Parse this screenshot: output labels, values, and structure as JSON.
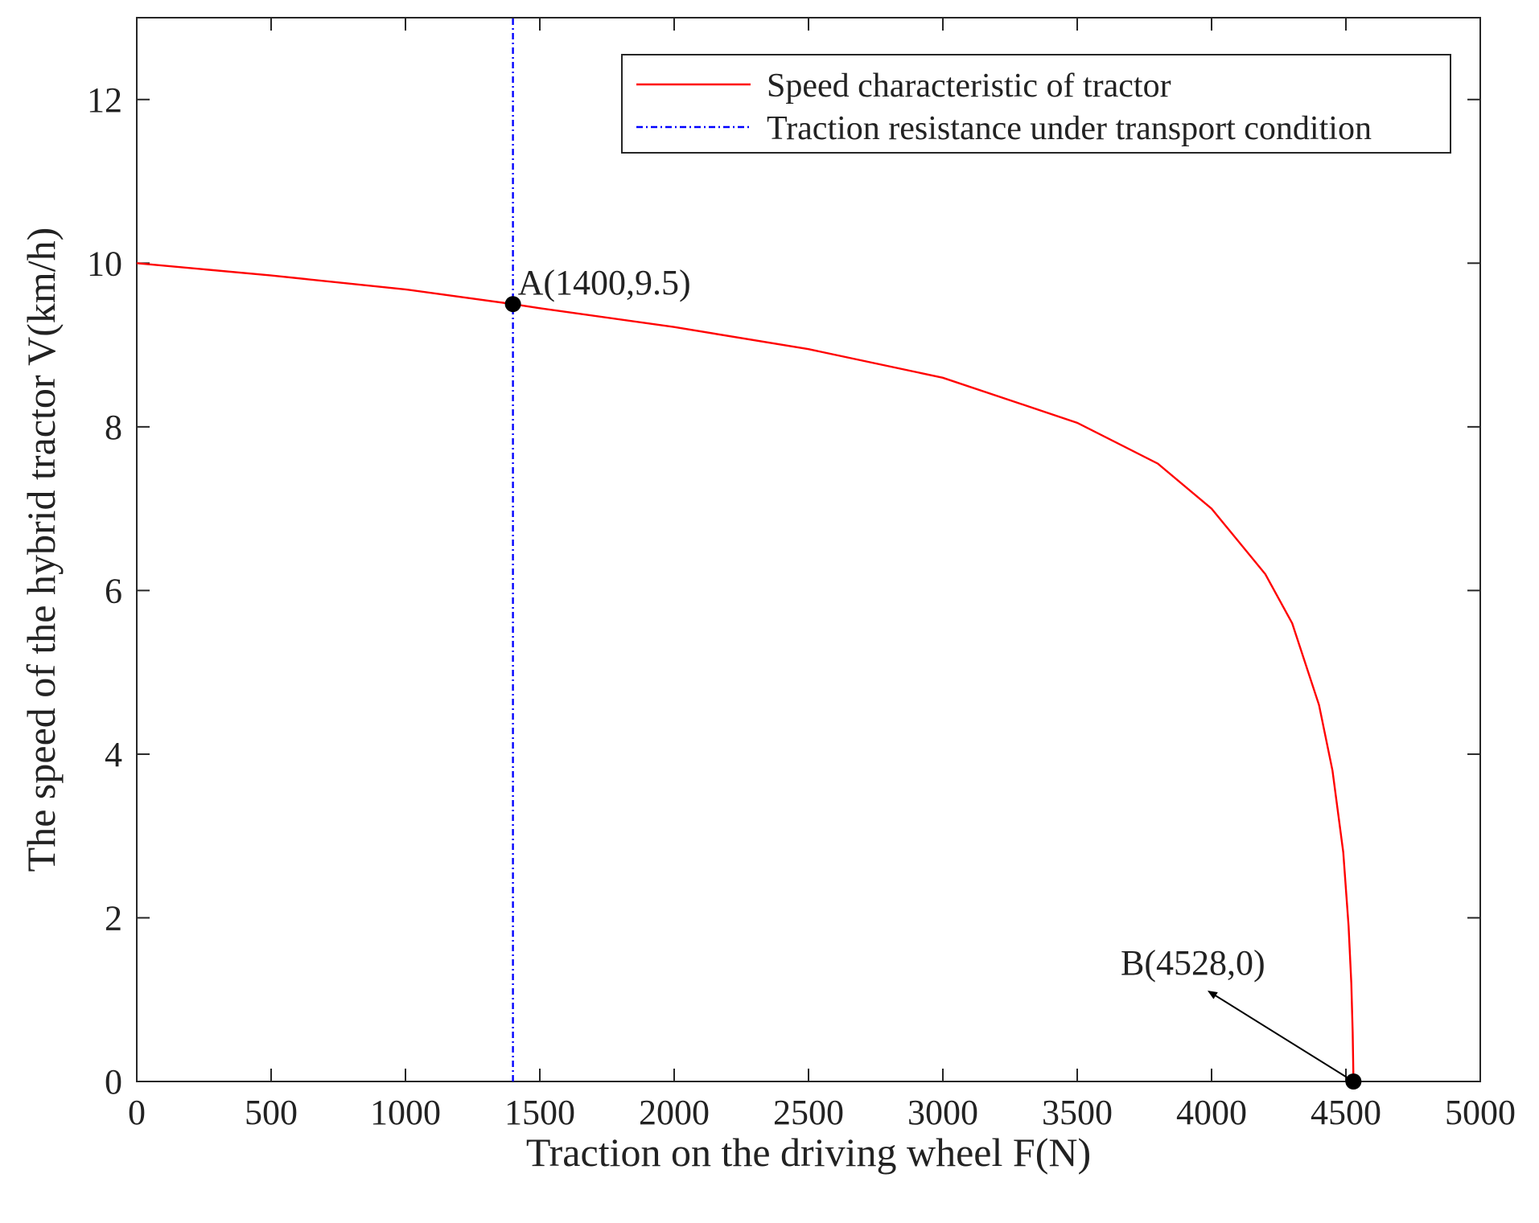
{
  "chart_data": {
    "type": "line",
    "xlabel": "Traction on the driving wheel F(N)",
    "ylabel": "The speed of the hybrid tractor V(km/h)",
    "xlim": [
      0,
      5000
    ],
    "ylim": [
      0,
      13
    ],
    "x_ticks": [
      0,
      500,
      1000,
      1500,
      2000,
      2500,
      3000,
      3500,
      4000,
      4500,
      5000
    ],
    "y_ticks": [
      0,
      2,
      4,
      6,
      8,
      10,
      12
    ],
    "grid": false,
    "legend_position": "top-right",
    "series": [
      {
        "name": "Speed characteristic of tractor",
        "color": "#ff0000",
        "style": "solid",
        "x": [
          0,
          500,
          1000,
          1400,
          1500,
          2000,
          2500,
          3000,
          3500,
          3800,
          4000,
          4200,
          4300,
          4400,
          4450,
          4490,
          4510,
          4520,
          4525,
          4528
        ],
        "y": [
          10.0,
          9.85,
          9.68,
          9.5,
          9.45,
          9.22,
          8.95,
          8.6,
          8.05,
          7.55,
          7.0,
          6.2,
          5.6,
          4.6,
          3.8,
          2.8,
          1.9,
          1.2,
          0.6,
          0.0
        ]
      },
      {
        "name": "Traction resistance under transport condition",
        "color": "#0000ff",
        "style": "dash-dot",
        "x": [
          1400,
          1400
        ],
        "y": [
          0,
          13
        ]
      }
    ],
    "points": [
      {
        "x": 1400,
        "y": 9.5,
        "label": "A(1400,9.5)"
      },
      {
        "x": 4528,
        "y": 0,
        "label": "B(4528,0)"
      }
    ],
    "annotations": [
      {
        "text": "B(4528,0)",
        "arrow_from": [
          4528,
          0
        ],
        "arrow_to": [
          3990,
          1.1
        ]
      }
    ]
  }
}
